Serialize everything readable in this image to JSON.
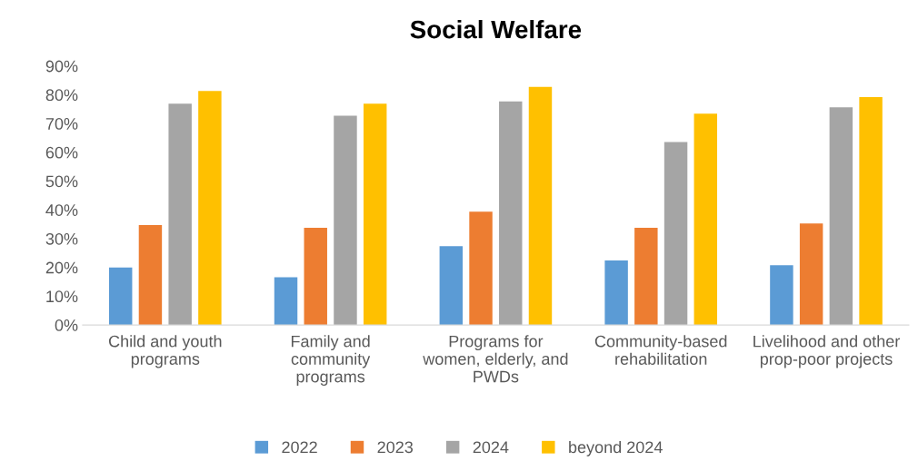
{
  "chart_data": {
    "type": "bar",
    "title": "Social Welfare",
    "categories": [
      "Child and youth\nprograms",
      "Family and\ncommunity\nprograms",
      "Programs for\nwomen, elderly, and\nPWDs",
      "Community-based\nrehabilitation",
      "Livelihood and other\nprop-poor projects"
    ],
    "series": [
      {
        "name": "2022",
        "color": "#5b9bd5",
        "values": [
          20,
          16.6,
          27.4,
          22.4,
          20.8
        ]
      },
      {
        "name": "2023",
        "color": "#ed7d31",
        "values": [
          34.7,
          33.8,
          39.4,
          33.8,
          35.3
        ]
      },
      {
        "name": "2024",
        "color": "#a5a5a5",
        "values": [
          76.9,
          72.7,
          77.7,
          63.6,
          75.6
        ]
      },
      {
        "name": "beyond 2024",
        "color": "#ffc000",
        "values": [
          81.3,
          76.9,
          82.7,
          73.4,
          79.2
        ]
      }
    ],
    "ylim": [
      0,
      90
    ],
    "yticks": [
      {
        "value": 0,
        "label": "0%"
      },
      {
        "value": 10,
        "label": "10%"
      },
      {
        "value": 20,
        "label": "20%"
      },
      {
        "value": 30,
        "label": "30%"
      },
      {
        "value": 40,
        "label": "40%"
      },
      {
        "value": 50,
        "label": "50%"
      },
      {
        "value": 60,
        "label": "60%"
      },
      {
        "value": 70,
        "label": "70%"
      },
      {
        "value": 80,
        "label": "80%"
      },
      {
        "value": 90,
        "label": "90%"
      }
    ],
    "grid": false,
    "legend": "bottom"
  }
}
